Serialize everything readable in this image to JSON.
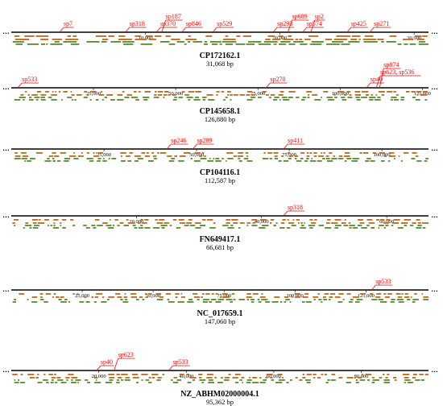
{
  "colors": {
    "forward": "#c0651a",
    "reverse": "#5a8a2a",
    "spacer": "#ff0000",
    "axis": "#000000"
  },
  "genomes": [
    {
      "accession": "CP172162.1",
      "length_label": "31,068 bp",
      "length": 31068,
      "ticks": [
        {
          "value": 10000,
          "label": "10,000"
        },
        {
          "value": 20000,
          "label": "20,000"
        },
        {
          "value": 30000,
          "label": "30,000"
        }
      ],
      "spacers": [
        {
          "label": "sp7",
          "pos": 3600
        },
        {
          "label": "sp318",
          "pos": 8500
        },
        {
          "label": "sp370",
          "pos": 10800
        },
        {
          "label": "sp187",
          "pos": 11200
        },
        {
          "label": "sp846",
          "pos": 12700
        },
        {
          "label": "sp529",
          "pos": 15000
        },
        {
          "label": "sp293",
          "pos": 19500
        },
        {
          "label": "sp689",
          "pos": 20600
        },
        {
          "label": "sp574",
          "pos": 21700
        },
        {
          "label": "sp2",
          "pos": 22300
        },
        {
          "label": "sp425",
          "pos": 25000
        },
        {
          "label": "sp271",
          "pos": 26700
        }
      ]
    },
    {
      "accession": "CP145658.1",
      "length_label": "126,880 bp",
      "length": 126880,
      "ticks": [
        {
          "value": 25000,
          "label": "25,000"
        },
        {
          "value": 50000,
          "label": "50,000"
        },
        {
          "value": 75000,
          "label": "75,000"
        },
        {
          "value": 100000,
          "label": "100,000"
        },
        {
          "value": 125000,
          "label": "125,000"
        }
      ],
      "spacers": [
        {
          "label": "sp533",
          "pos": 2000
        },
        {
          "label": "sp270",
          "pos": 77500
        },
        {
          "label": "sp40",
          "pos": 108000
        },
        {
          "label": "sp874",
          "pos": 112000
        },
        {
          "label": "sp623, sp536",
          "pos": 111000
        }
      ]
    },
    {
      "accession": "CP104116.1",
      "length_label": "112,587 bp",
      "length": 112587,
      "ticks": [
        {
          "value": 25000,
          "label": "25,000"
        },
        {
          "value": 50000,
          "label": "50,000"
        },
        {
          "value": 75000,
          "label": "75,000"
        },
        {
          "value": 100000,
          "label": "100,000"
        }
      ],
      "spacers": [
        {
          "label": "sp246",
          "pos": 42000
        },
        {
          "label": "sp289",
          "pos": 49000
        },
        {
          "label": "sp411",
          "pos": 73500
        }
      ]
    },
    {
      "accession": "FN649417.1",
      "length_label": "66,681 bp",
      "length": 66681,
      "ticks": [
        {
          "value": 20000,
          "label": "20,000"
        },
        {
          "value": 40000,
          "label": "40,000"
        },
        {
          "value": 60000,
          "label": "60,000"
        }
      ],
      "spacers": [
        {
          "label": "sp318",
          "pos": 43500
        }
      ]
    },
    {
      "accession": "NC_017659.1",
      "length_label": "147,060 bp",
      "length": 147060,
      "ticks": [
        {
          "value": 25000,
          "label": "25,000"
        },
        {
          "value": 50000,
          "label": "50,000"
        },
        {
          "value": 75000,
          "label": "75,000"
        },
        {
          "value": 100000,
          "label": "100,000"
        },
        {
          "value": 125000,
          "label": "125,000"
        }
      ],
      "spacers": [
        {
          "label": "sp533",
          "pos": 127000
        }
      ]
    },
    {
      "accession": "NZ_ABHM02000004.1",
      "length_label": "95,362 bp",
      "length": 95362,
      "ticks": [
        {
          "value": 20000,
          "label": "20,000"
        },
        {
          "value": 40000,
          "label": "40,000"
        },
        {
          "value": 60000,
          "label": "60,000"
        },
        {
          "value": 80000,
          "label": "80,000"
        }
      ],
      "spacers": [
        {
          "label": "sp40",
          "pos": 19500
        },
        {
          "label": "sp623",
          "pos": 23500
        },
        {
          "label": "sp533",
          "pos": 36000
        }
      ]
    }
  ]
}
